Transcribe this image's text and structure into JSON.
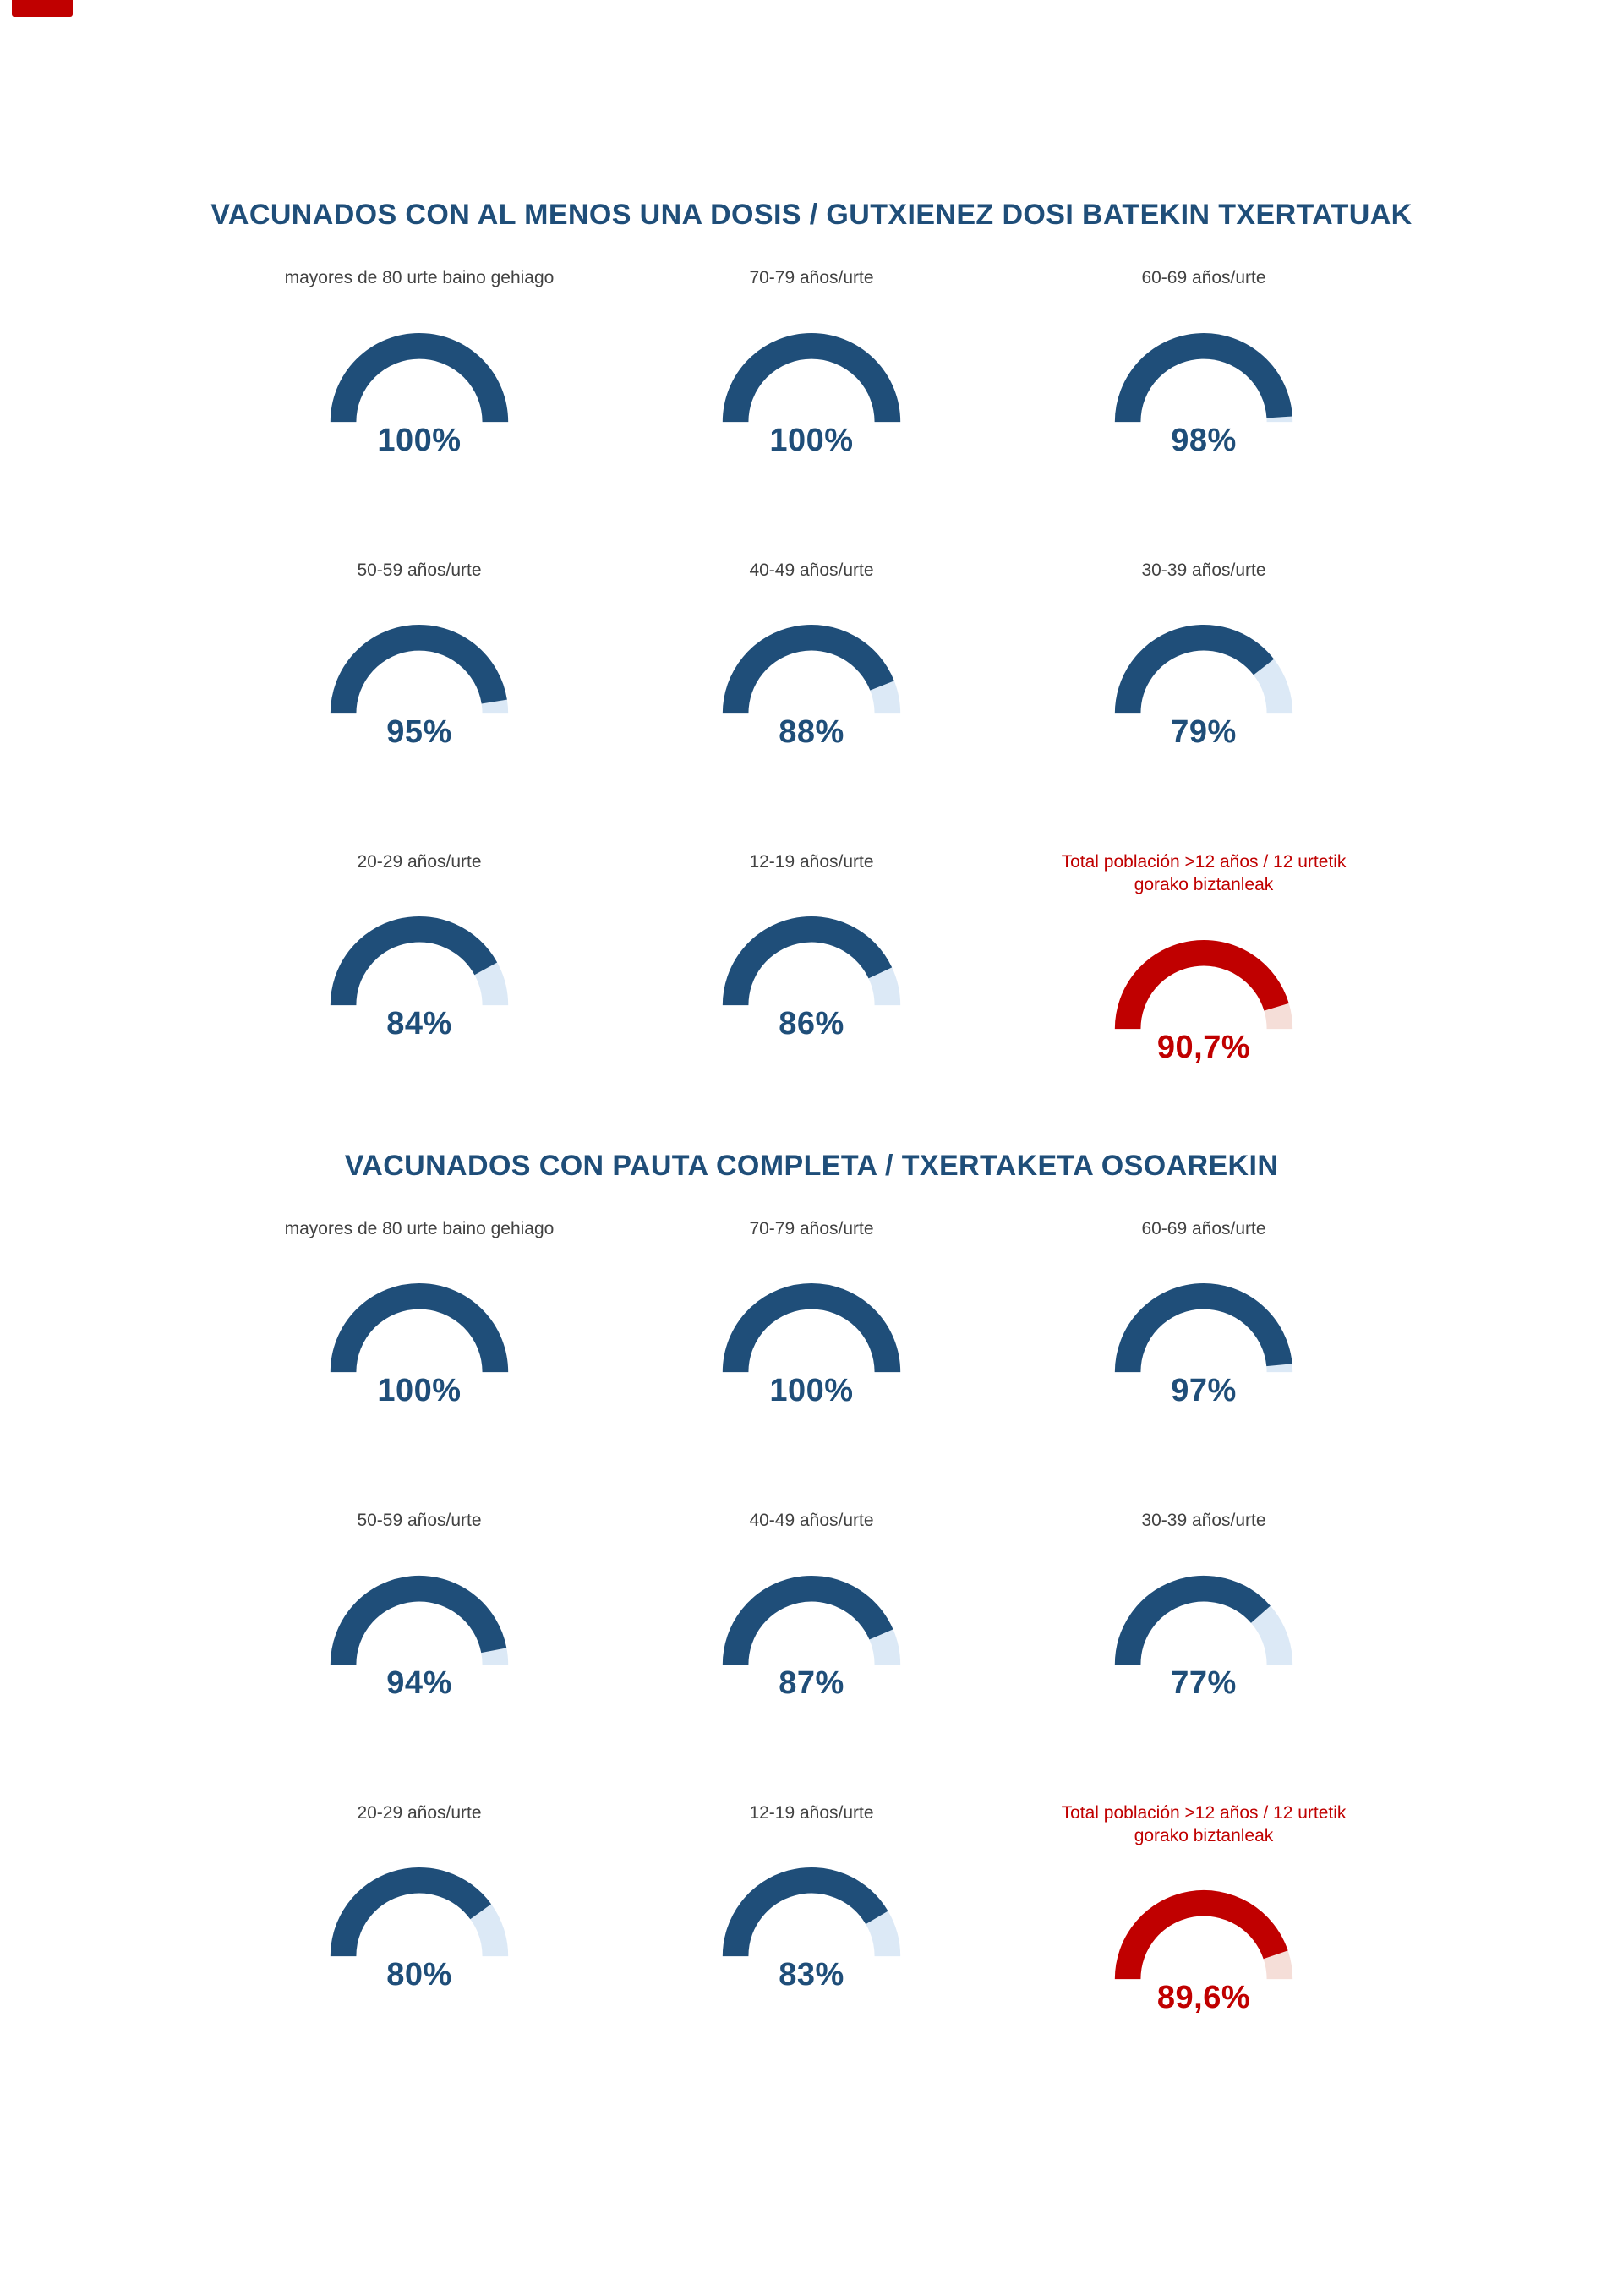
{
  "colors": {
    "blue_fill": "#1f4e79",
    "blue_track": "#dce9f6",
    "red_fill": "#c00000",
    "red_track": "#f5ded8",
    "title_color": "#1f4e79",
    "label_color": "#424242",
    "corner_mark_color": "#c00000"
  },
  "sections": [
    {
      "title": "VACUNADOS CON AL MENOS UNA DOSIS / GUTXIENEZ DOSI BATEKIN TXERTATUAK",
      "gauges": [
        {
          "label": "mayores de 80 urte baino gehiago",
          "value": 100,
          "display": "100%",
          "scheme": "blue"
        },
        {
          "label": "70-79 años/urte",
          "value": 100,
          "display": "100%",
          "scheme": "blue"
        },
        {
          "label": "60-69 años/urte",
          "value": 98,
          "display": "98%",
          "scheme": "blue"
        },
        {
          "label": "50-59 años/urte",
          "value": 95,
          "display": "95%",
          "scheme": "blue"
        },
        {
          "label": "40-49 años/urte",
          "value": 88,
          "display": "88%",
          "scheme": "blue"
        },
        {
          "label": "30-39 años/urte",
          "value": 79,
          "display": "79%",
          "scheme": "blue"
        },
        {
          "label": "20-29 años/urte",
          "value": 84,
          "display": "84%",
          "scheme": "blue"
        },
        {
          "label": "12-19 años/urte",
          "value": 86,
          "display": "86%",
          "scheme": "blue"
        },
        {
          "label": "Total población >12 años / 12 urtetik gorako biztanleak",
          "value": 90.7,
          "display": "90,7%",
          "scheme": "red"
        }
      ]
    },
    {
      "title": "VACUNADOS CON PAUTA COMPLETA / TXERTAKETA OSOAREKIN",
      "gauges": [
        {
          "label": "mayores de 80 urte baino gehiago",
          "value": 100,
          "display": "100%",
          "scheme": "blue"
        },
        {
          "label": "70-79 años/urte",
          "value": 100,
          "display": "100%",
          "scheme": "blue"
        },
        {
          "label": "60-69 años/urte",
          "value": 97,
          "display": "97%",
          "scheme": "blue"
        },
        {
          "label": "50-59 años/urte",
          "value": 94,
          "display": "94%",
          "scheme": "blue"
        },
        {
          "label": "40-49 años/urte",
          "value": 87,
          "display": "87%",
          "scheme": "blue"
        },
        {
          "label": "30-39 años/urte",
          "value": 77,
          "display": "77%",
          "scheme": "blue"
        },
        {
          "label": "20-29 años/urte",
          "value": 80,
          "display": "80%",
          "scheme": "blue"
        },
        {
          "label": "12-19 años/urte",
          "value": 83,
          "display": "83%",
          "scheme": "blue"
        },
        {
          "label": "Total población >12 años / 12 urtetik gorako biztanleak",
          "value": 89.6,
          "display": "89,6%",
          "scheme": "red"
        }
      ]
    }
  ],
  "chart_data": [
    {
      "type": "gauge",
      "title": "VACUNADOS CON AL MENOS UNA DOSIS / GUTXIENEZ DOSI BATEKIN TXERTATUAK",
      "unit": "%",
      "range": [
        0,
        100
      ],
      "categories": [
        "mayores de 80 urte baino gehiago",
        "70-79 años/urte",
        "60-69 años/urte",
        "50-59 años/urte",
        "40-49 años/urte",
        "30-39 años/urte",
        "20-29 años/urte",
        "12-19 años/urte",
        "Total población >12 años / 12 urtetik gorako biztanleak"
      ],
      "values": [
        100,
        100,
        98,
        95,
        88,
        79,
        84,
        86,
        90.7
      ],
      "value_labels": [
        "100%",
        "100%",
        "98%",
        "95%",
        "88%",
        "79%",
        "84%",
        "86%",
        "90,7%"
      ],
      "highlight_category": "Total población >12 años / 12 urtetik gorako biztanleak",
      "fill_color": "#1f4e79",
      "highlight_color": "#c00000",
      "layout": "3x3 grid of half-donut gauges"
    },
    {
      "type": "gauge",
      "title": "VACUNADOS CON PAUTA COMPLETA / TXERTAKETA OSOAREKIN",
      "unit": "%",
      "range": [
        0,
        100
      ],
      "categories": [
        "mayores de 80 urte baino gehiago",
        "70-79 años/urte",
        "60-69 años/urte",
        "50-59 años/urte",
        "40-49 años/urte",
        "30-39 años/urte",
        "20-29 años/urte",
        "12-19 años/urte",
        "Total población >12 años / 12 urtetik gorako biztanleak"
      ],
      "values": [
        100,
        100,
        97,
        94,
        87,
        77,
        80,
        83,
        89.6
      ],
      "value_labels": [
        "100%",
        "100%",
        "97%",
        "94%",
        "87%",
        "77%",
        "80%",
        "83%",
        "89,6%"
      ],
      "highlight_category": "Total población >12 años / 12 urtetik gorako biztanleak",
      "fill_color": "#1f4e79",
      "highlight_color": "#c00000",
      "layout": "3x3 grid of half-donut gauges"
    }
  ]
}
